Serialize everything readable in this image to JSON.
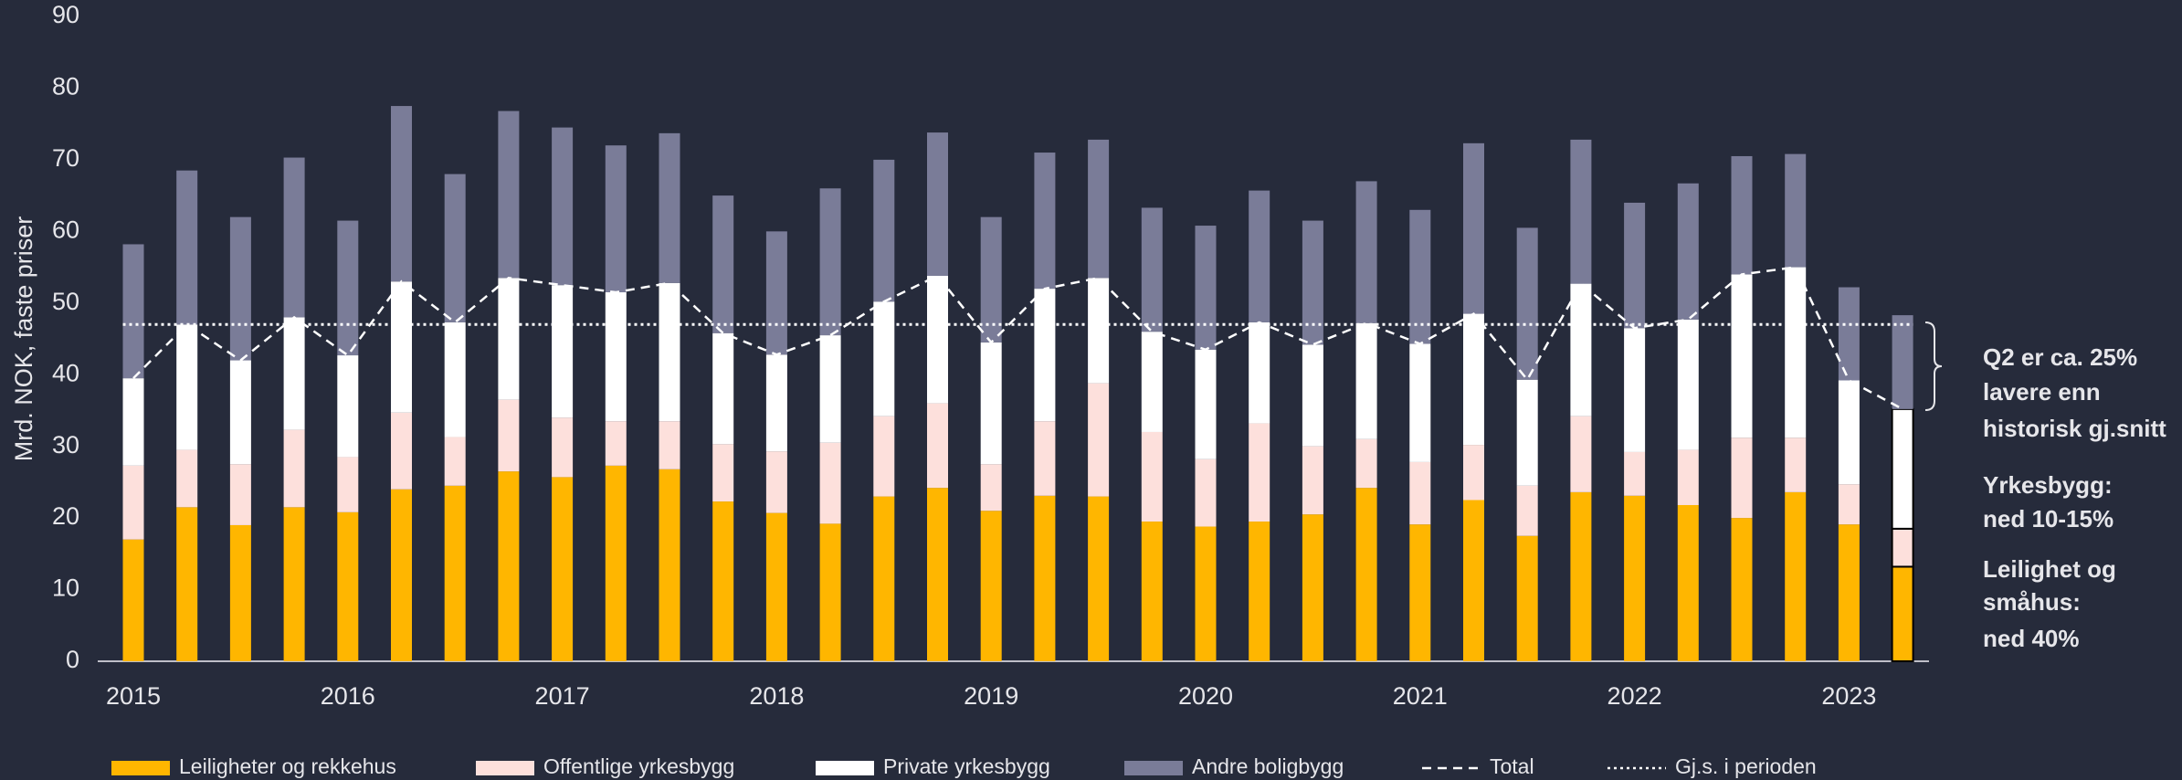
{
  "chart_data": {
    "type": "stacked_bar",
    "y_label": "Mrd. NOK, faste priser",
    "categories": [
      "2015",
      null,
      null,
      null,
      "2016",
      null,
      null,
      null,
      "2017",
      null,
      null,
      null,
      "2018",
      null,
      null,
      null,
      "2019",
      null,
      null,
      null,
      "2020",
      null,
      null,
      null,
      "2021",
      null,
      null,
      null,
      "2022",
      null,
      null,
      null,
      "2023",
      null
    ],
    "series": [
      {
        "name": "Leiligheter og rekkehus",
        "color": "#ffb600",
        "values": [
          17,
          21.5,
          19,
          21.5,
          20.8,
          24,
          24.5,
          26.5,
          25.7,
          27.3,
          26.8,
          22.3,
          20.7,
          19.2,
          23,
          24.2,
          21,
          23.1,
          23,
          19.5,
          18.8,
          19.5,
          20.5,
          24.2,
          19.1,
          22.5,
          17.5,
          23.6,
          23.1,
          21.8,
          20,
          23.6,
          19.1,
          13.2
        ]
      },
      {
        "name": "Offentlige yrkesbygg",
        "color": "#fde0dc",
        "values": [
          10.3,
          8,
          8.5,
          10.8,
          7.7,
          10.7,
          6.8,
          10,
          8.3,
          6.2,
          6.7,
          8,
          8.6,
          11.3,
          11.2,
          11.8,
          6.5,
          10.4,
          15.8,
          12.5,
          9.4,
          13.7,
          9.5,
          6.8,
          8.7,
          7.7,
          7,
          10.6,
          6.1,
          7.7,
          11.2,
          7.6,
          5.6,
          5.3
        ]
      },
      {
        "name": "Private yrkesbygg",
        "color": "#ffffff",
        "values": [
          12.2,
          17.5,
          14.5,
          15.7,
          14.2,
          18.3,
          16,
          17,
          18.5,
          18,
          19.3,
          15.5,
          13.5,
          15,
          16,
          17.8,
          17,
          18.5,
          14.7,
          14,
          15.3,
          14.1,
          14.2,
          16.2,
          16.5,
          18.3,
          14.8,
          18.5,
          17.3,
          18.2,
          22.8,
          23.8,
          14.5,
          16.7
        ]
      },
      {
        "name": "Andre boligbygg",
        "color": "#7a7c98",
        "values": [
          18.7,
          21.5,
          20,
          22.3,
          18.8,
          24.5,
          20.7,
          23.3,
          22,
          20.5,
          20.9,
          19.2,
          17.2,
          20.5,
          19.8,
          20,
          17.5,
          19,
          19.3,
          17.3,
          17.3,
          18.4,
          17.3,
          19.8,
          18.7,
          23.8,
          21.2,
          20.1,
          17.5,
          19,
          16.5,
          15.8,
          13,
          13.1
        ]
      }
    ],
    "lines": [
      {
        "name": "Total",
        "color": "#ffffff",
        "style": "dashed",
        "values": [
          39.5,
          47,
          42,
          48,
          42.7,
          53,
          47.3,
          53.5,
          52.5,
          51.5,
          52.8,
          45.8,
          42.8,
          45.5,
          50.2,
          53.8,
          44.5,
          52,
          53.5,
          46,
          43.5,
          47.3,
          44.2,
          47.2,
          44.3,
          48.5,
          39.3,
          52.7,
          46.5,
          47.7,
          54,
          55,
          39.2,
          35.2
        ]
      },
      {
        "name": "Gj.s. i perioden",
        "color": "#ffffff",
        "style": "dotted",
        "value": 47
      }
    ],
    "ylim": [
      0,
      90
    ],
    "yticks": [
      0,
      10,
      20,
      30,
      40,
      50,
      60,
      70,
      80,
      90
    ],
    "annotations": [
      [
        "Q2 er ca. 25%",
        "lavere enn",
        "historisk gj.snitt"
      ],
      [
        "Yrkesbygg:",
        "ned 10-15%"
      ],
      [
        "Leilighet og",
        "småhus:",
        "ned 40%"
      ]
    ]
  }
}
